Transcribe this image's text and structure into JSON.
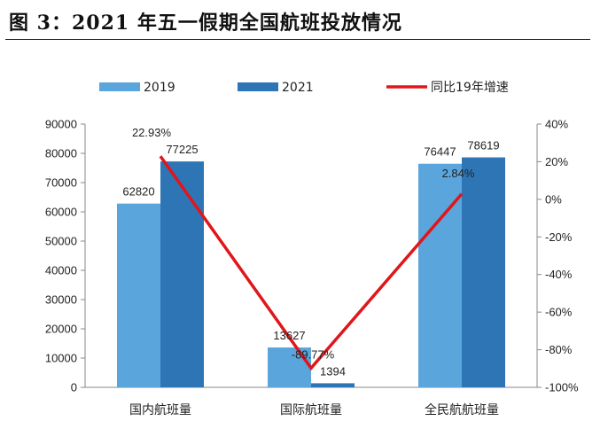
{
  "figure_title": "图 3：2021 年五一假期全国航班投放情况",
  "chart_data": {
    "type": "bar",
    "categories": [
      "国内航班量",
      "国际航班量",
      "全民航航班量"
    ],
    "series": [
      {
        "name": "2019",
        "type": "bar",
        "axis": "left",
        "color": "#5AA5DC",
        "values": [
          62820,
          13627,
          76447
        ]
      },
      {
        "name": "2021",
        "type": "bar",
        "axis": "left",
        "color": "#2E75B6",
        "values": [
          77225,
          1394,
          78619
        ]
      },
      {
        "name": "同比19年增速",
        "type": "line",
        "axis": "right",
        "color": "#E0161B",
        "values": [
          22.93,
          -89.77,
          2.84
        ]
      }
    ],
    "value_labels": {
      "2019": [
        "62820",
        "13627",
        "76447"
      ],
      "2021": [
        "77225",
        "1394",
        "78619"
      ],
      "同比19年增速": [
        "22.93%",
        "-89.77%",
        "2.84%"
      ]
    },
    "left_axis": {
      "min": 0,
      "max": 90000,
      "step": 10000,
      "tick_labels": [
        "0",
        "10000",
        "20000",
        "30000",
        "40000",
        "50000",
        "60000",
        "70000",
        "80000",
        "90000"
      ]
    },
    "right_axis": {
      "min": -100,
      "max": 40,
      "step": 20,
      "unit": "%",
      "tick_labels": [
        "-100%",
        "-80%",
        "-60%",
        "-40%",
        "-20%",
        "0%",
        "20%",
        "40%"
      ]
    },
    "legend_position": "top",
    "grid": false
  }
}
